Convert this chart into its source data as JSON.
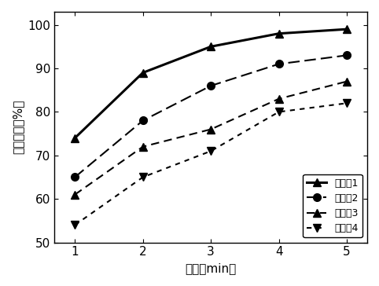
{
  "x": [
    1,
    2,
    3,
    4,
    5
  ],
  "series": [
    {
      "label": "实施兣1",
      "values": [
        74,
        89,
        95,
        98,
        99
      ],
      "linestyle": "-",
      "marker": "^",
      "markersize": 7,
      "color": "black",
      "linewidth": 2.2,
      "dashes": []
    },
    {
      "label": "实施兣2",
      "values": [
        65,
        78,
        86,
        91,
        93
      ],
      "linestyle": "--",
      "marker": "o",
      "markersize": 7,
      "color": "black",
      "linewidth": 1.5,
      "dashes": [
        7,
        3
      ]
    },
    {
      "label": "实施兣3",
      "values": [
        61,
        72,
        76,
        83,
        87
      ],
      "linestyle": "--",
      "marker": "^",
      "markersize": 7,
      "color": "black",
      "linewidth": 1.5,
      "dashes": [
        5,
        3
      ]
    },
    {
      "label": "实施兣4",
      "values": [
        54,
        65,
        71,
        80,
        82
      ],
      "linestyle": "--",
      "marker": "v",
      "markersize": 7,
      "color": "black",
      "linewidth": 1.5,
      "dashes": [
        3,
        3
      ]
    }
  ],
  "xlabel": "时间（min）",
  "ylabel": "降解效率（%）",
  "xlim": [
    0.7,
    5.3
  ],
  "ylim": [
    50,
    103
  ],
  "yticks": [
    50,
    60,
    70,
    80,
    90,
    100
  ],
  "xticks": [
    1,
    2,
    3,
    4,
    5
  ],
  "legend_loc": "lower right",
  "background_color": "#ffffff",
  "font_size": 11,
  "label_font_size": 11,
  "legend_fontsize": 9
}
